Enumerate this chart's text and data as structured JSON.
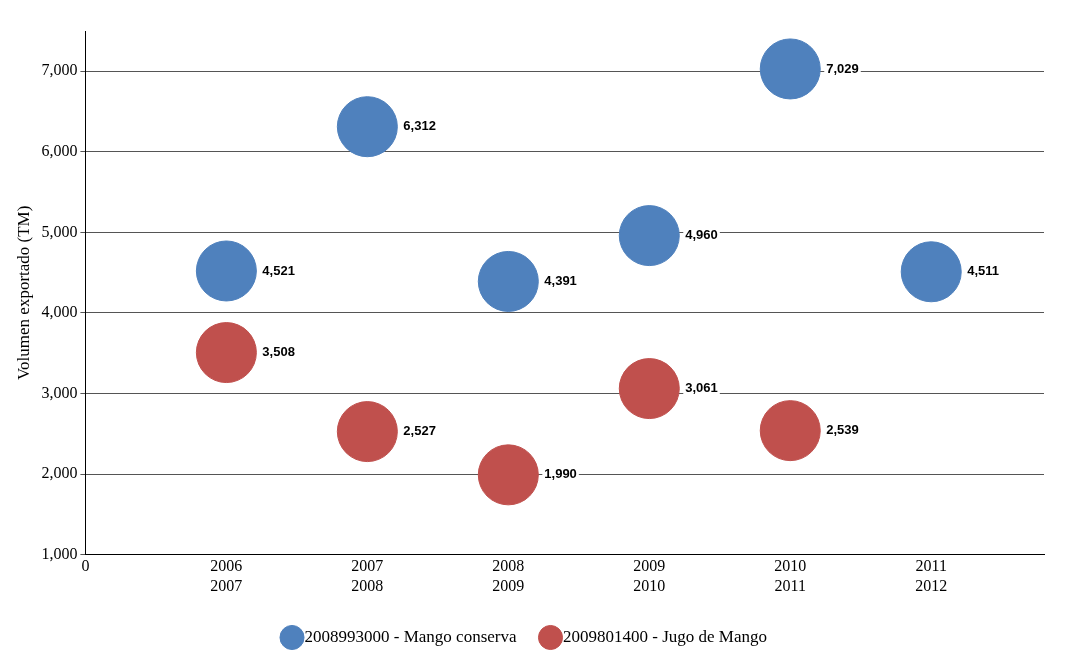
{
  "chart_data": {
    "type": "scatter",
    "marker": "circle",
    "ylabel": "Volumen exportado (TM)",
    "categories": [
      "0",
      "2006\n2007",
      "2007\n2008",
      "2008\n2009",
      "2009\n2010",
      "2010\n2011",
      "2011\n2012"
    ],
    "ylim": [
      1000,
      7500
    ],
    "yticks": [
      {
        "value": 1000,
        "label": "1,000"
      },
      {
        "value": 2000,
        "label": "2,000"
      },
      {
        "value": 3000,
        "label": "3,000"
      },
      {
        "value": 4000,
        "label": "4,000"
      },
      {
        "value": 5000,
        "label": "5,000"
      },
      {
        "value": 6000,
        "label": "6,000"
      },
      {
        "value": 7000,
        "label": "7,000"
      }
    ],
    "grid": "y",
    "legend": "bottom",
    "series": [
      {
        "name": "2008993000 - Mango conserva",
        "color": "#4f81bd",
        "values": [
          null,
          4521,
          6312,
          4391,
          4960,
          7029,
          4511
        ],
        "value_labels": [
          null,
          "4,521",
          "6,312",
          "4,391",
          "4,960",
          "7,029",
          "4,511"
        ]
      },
      {
        "name": "2009801400 - Jugo de Mango",
        "color": "#c0504d",
        "values": [
          null,
          3508,
          2527,
          1990,
          3061,
          2539,
          null
        ],
        "value_labels": [
          null,
          "3,508",
          "2,527",
          "1,990",
          "3,061",
          "2,539",
          null
        ]
      }
    ]
  }
}
